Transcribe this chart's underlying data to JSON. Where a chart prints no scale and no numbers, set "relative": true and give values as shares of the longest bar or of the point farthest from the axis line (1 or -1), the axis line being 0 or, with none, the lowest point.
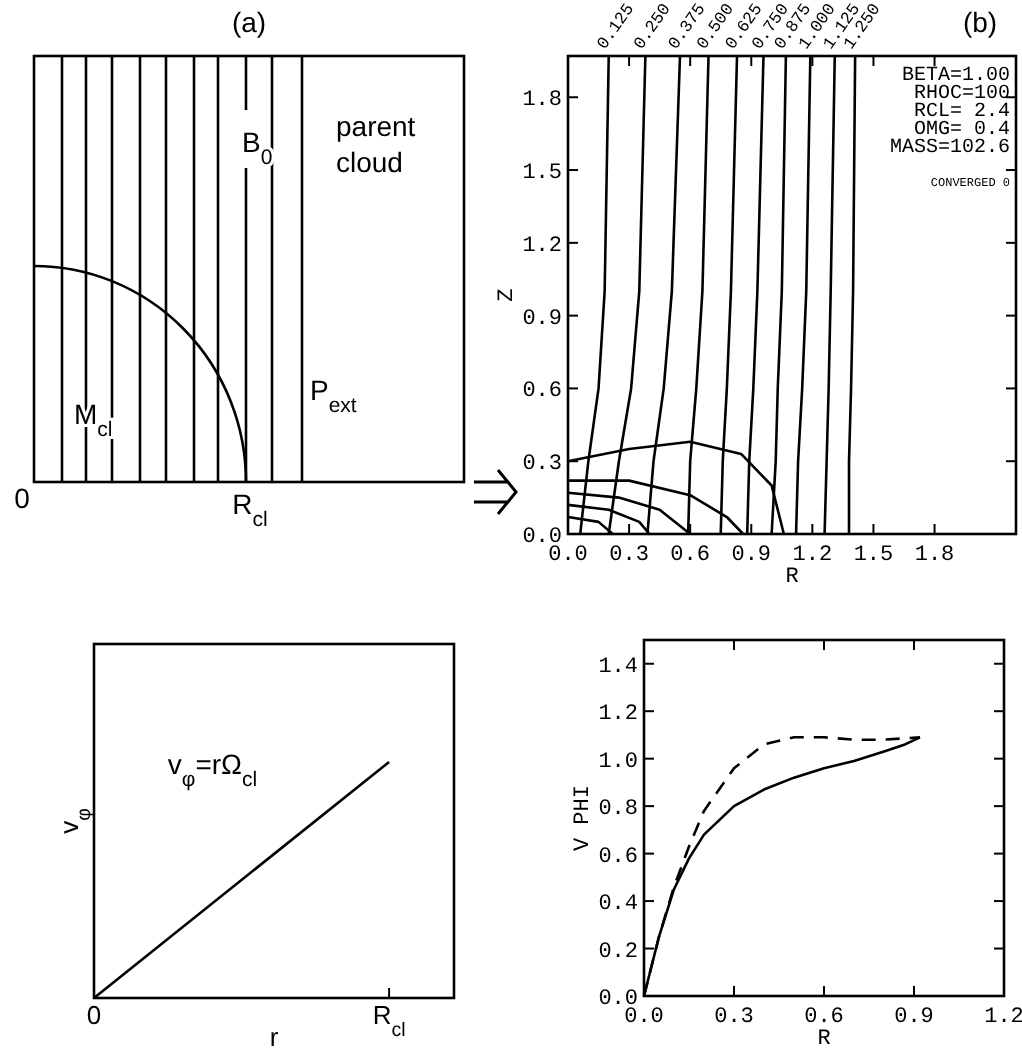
{
  "chart_data": [
    {
      "type": "other",
      "title": "(a)",
      "annotations": [
        "B$_{0}$",
        "parent cloud",
        "M$_{cl}$",
        "P$_{ext}$",
        "R$_{cl}$",
        "0"
      ]
    },
    {
      "type": "line",
      "title": "(b)",
      "xlabel": "R",
      "ylabel": "Z",
      "xlim": [
        0,
        2.2
      ],
      "ylim": [
        0,
        1.97
      ],
      "xticks": [
        {
          "value": 0,
          "label": "0.0"
        },
        {
          "value": 0.3,
          "label": "0.3"
        },
        {
          "value": 0.6,
          "label": "0.6"
        },
        {
          "value": 0.9,
          "label": "0.9"
        },
        {
          "value": 1.2,
          "label": "1.2"
        },
        {
          "value": 1.5,
          "label": "1.5"
        },
        {
          "value": 1.8,
          "label": "1.8"
        }
      ],
      "yticks": [
        {
          "value": 0,
          "label": "0.0"
        },
        {
          "value": 0.3,
          "label": "0.3"
        },
        {
          "value": 0.6,
          "label": "0.6"
        },
        {
          "value": 0.9,
          "label": "0.9"
        },
        {
          "value": 1.2,
          "label": "1.2"
        },
        {
          "value": 1.5,
          "label": "1.5"
        },
        {
          "value": 1.8,
          "label": "1.8"
        }
      ],
      "annotations": [
        "BETA=1.00",
        "RHOC=100",
        "RCL= 2.4",
        "OMG= 0.4",
        "MASS=102.6",
        "CONVERGED 0"
      ],
      "series": [
        {
          "name": "0.125",
          "color": "#000000",
          "x": [
            0.06,
            0.1,
            0.15,
            0.18,
            0.2
          ],
          "values": [
            0,
            0.3,
            0.6,
            1.0,
            1.97
          ]
        },
        {
          "name": "0.250",
          "color": "#000000",
          "x": [
            0.2,
            0.25,
            0.31,
            0.35,
            0.38
          ],
          "values": [
            0,
            0.3,
            0.6,
            1.0,
            1.97
          ]
        },
        {
          "name": "0.375",
          "color": "#000000",
          "x": [
            0.39,
            0.42,
            0.47,
            0.51,
            0.55
          ],
          "values": [
            0,
            0.3,
            0.6,
            1.0,
            1.97
          ]
        },
        {
          "name": "0.500",
          "color": "#000000",
          "x": [
            0.59,
            0.6,
            0.63,
            0.66,
            0.69
          ],
          "values": [
            0,
            0.3,
            0.6,
            1.0,
            1.97
          ]
        },
        {
          "name": "0.625",
          "color": "#000000",
          "x": [
            0.75,
            0.76,
            0.78,
            0.8,
            0.83
          ],
          "values": [
            0,
            0.3,
            0.6,
            1.0,
            1.97
          ]
        },
        {
          "name": "0.750",
          "color": "#000000",
          "x": [
            0.88,
            0.89,
            0.91,
            0.93,
            0.96
          ],
          "values": [
            0,
            0.3,
            0.6,
            1.0,
            1.97
          ]
        },
        {
          "name": "0.875",
          "color": "#000000",
          "x": [
            1.0,
            1.02,
            1.03,
            1.05,
            1.07
          ],
          "values": [
            0,
            0.3,
            0.6,
            1.0,
            1.97
          ]
        },
        {
          "name": "1.000",
          "color": "#000000",
          "x": [
            1.12,
            1.13,
            1.15,
            1.17,
            1.19
          ],
          "values": [
            0,
            0.3,
            0.6,
            1.0,
            1.97
          ]
        },
        {
          "name": "1.125",
          "color": "#000000",
          "x": [
            1.26,
            1.27,
            1.28,
            1.29,
            1.31
          ],
          "values": [
            0,
            0.3,
            0.6,
            1.0,
            1.97
          ]
        },
        {
          "name": "1.250",
          "color": "#000000",
          "x": [
            1.38,
            1.38,
            1.39,
            1.4,
            1.41
          ],
          "values": [
            0,
            0.3,
            0.6,
            1.0,
            1.97
          ]
        },
        {
          "color": "#000000",
          "x": [
            0,
            0.3,
            0.6,
            0.85,
            1.0,
            1.06
          ],
          "values": [
            0.3,
            0.35,
            0.38,
            0.33,
            0.2,
            0
          ]
        },
        {
          "color": "#000000",
          "x": [
            0,
            0.3,
            0.6,
            0.78,
            0.86
          ],
          "values": [
            0.22,
            0.22,
            0.16,
            0.07,
            0
          ]
        },
        {
          "color": "#000000",
          "x": [
            0,
            0.25,
            0.45,
            0.6
          ],
          "values": [
            0.17,
            0.15,
            0.1,
            0
          ]
        },
        {
          "color": "#000000",
          "x": [
            0,
            0.2,
            0.35,
            0.4
          ],
          "values": [
            0.12,
            0.1,
            0.05,
            0
          ]
        },
        {
          "color": "#000000",
          "x": [
            0,
            0.15,
            0.22
          ],
          "values": [
            0.07,
            0.05,
            0
          ]
        }
      ]
    },
    {
      "type": "line",
      "relative": true,
      "xlabel": "r",
      "ylabel": "v$_{φ}$",
      "categories": [
        "0",
        "R$_{cl}$"
      ],
      "tick_labels": "x",
      "annotations": [
        "v$_{φ}$=rΩ$_{cl}$"
      ],
      "series": [
        {
          "color": "#000000",
          "values": [
            0,
            1
          ]
        }
      ]
    },
    {
      "type": "line",
      "xlabel": "R",
      "ylabel": "V PHI",
      "xlim": [
        0,
        1.2
      ],
      "ylim": [
        0,
        1.5
      ],
      "xticks": [
        {
          "value": 0,
          "label": "0.0"
        },
        {
          "value": 0.3,
          "label": "0.3"
        },
        {
          "value": 0.6,
          "label": "0.6"
        },
        {
          "value": 0.9,
          "label": "0.9"
        },
        {
          "value": 1.2,
          "label": "1.2"
        }
      ],
      "yticks": [
        {
          "value": 0,
          "label": "0.0"
        },
        {
          "value": 0.2,
          "label": "0.2"
        },
        {
          "value": 0.4,
          "label": "0.4"
        },
        {
          "value": 0.6,
          "label": "0.6"
        },
        {
          "value": 0.8,
          "label": "0.8"
        },
        {
          "value": 1.0,
          "label": "1.0"
        },
        {
          "value": 1.2,
          "label": "1.2"
        },
        {
          "value": 1.4,
          "label": "1.4"
        }
      ],
      "series": [
        {
          "color": "#000000",
          "line_style": "solid",
          "x": [
            0,
            0.05,
            0.1,
            0.15,
            0.2,
            0.3,
            0.4,
            0.5,
            0.6,
            0.7,
            0.8,
            0.87,
            0.92
          ],
          "values": [
            0,
            0.25,
            0.45,
            0.58,
            0.68,
            0.8,
            0.87,
            0.92,
            0.96,
            0.99,
            1.03,
            1.06,
            1.09
          ]
        },
        {
          "color": "#000000",
          "line_style": "dashed",
          "x": [
            0,
            0.05,
            0.1,
            0.15,
            0.2,
            0.3,
            0.4,
            0.5,
            0.6,
            0.7,
            0.8,
            0.92
          ],
          "values": [
            0,
            0.25,
            0.46,
            0.63,
            0.78,
            0.96,
            1.06,
            1.09,
            1.09,
            1.08,
            1.08,
            1.09
          ]
        }
      ]
    }
  ]
}
